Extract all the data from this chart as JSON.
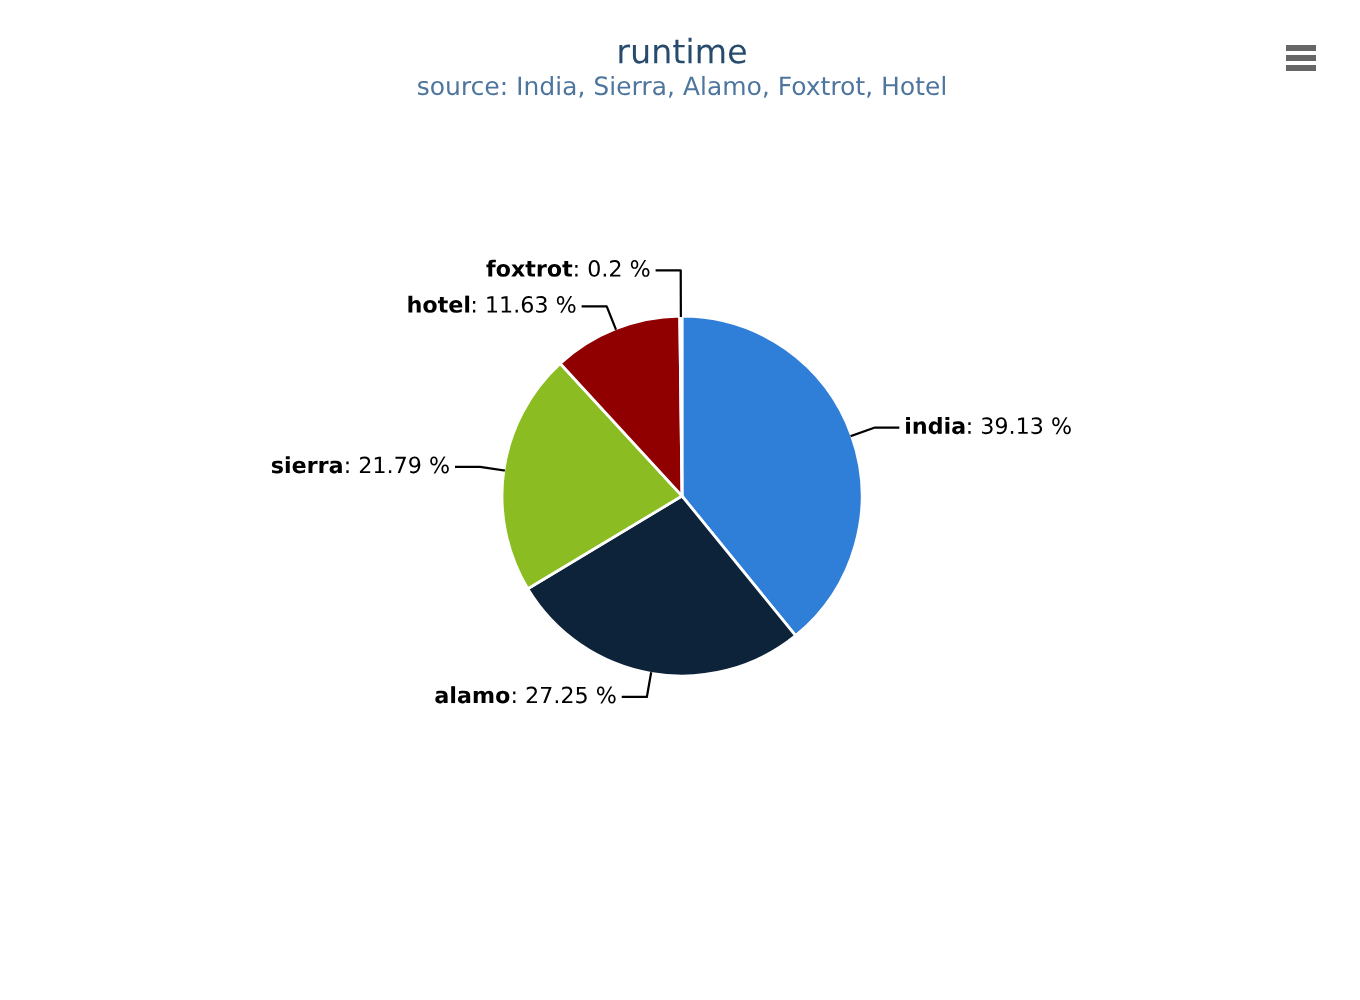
{
  "chart_data": {
    "type": "pie",
    "title": "runtime",
    "subtitle": "source: India, Sierra, Alamo, Foxtrot, Hotel",
    "categories": [
      "india",
      "alamo",
      "sierra",
      "hotel",
      "foxtrot"
    ],
    "values": [
      39.13,
      27.25,
      21.79,
      11.63,
      0.2
    ],
    "value_labels": [
      ": 39.13 %",
      ": 27.25 %",
      ": 21.79 %",
      ": 11.63 %",
      ": 0.2 %"
    ],
    "colors": [
      "#2f7ed8",
      "#0d233a",
      "#8bbc21",
      "#910000",
      "#1aadce"
    ],
    "legend": false
  }
}
